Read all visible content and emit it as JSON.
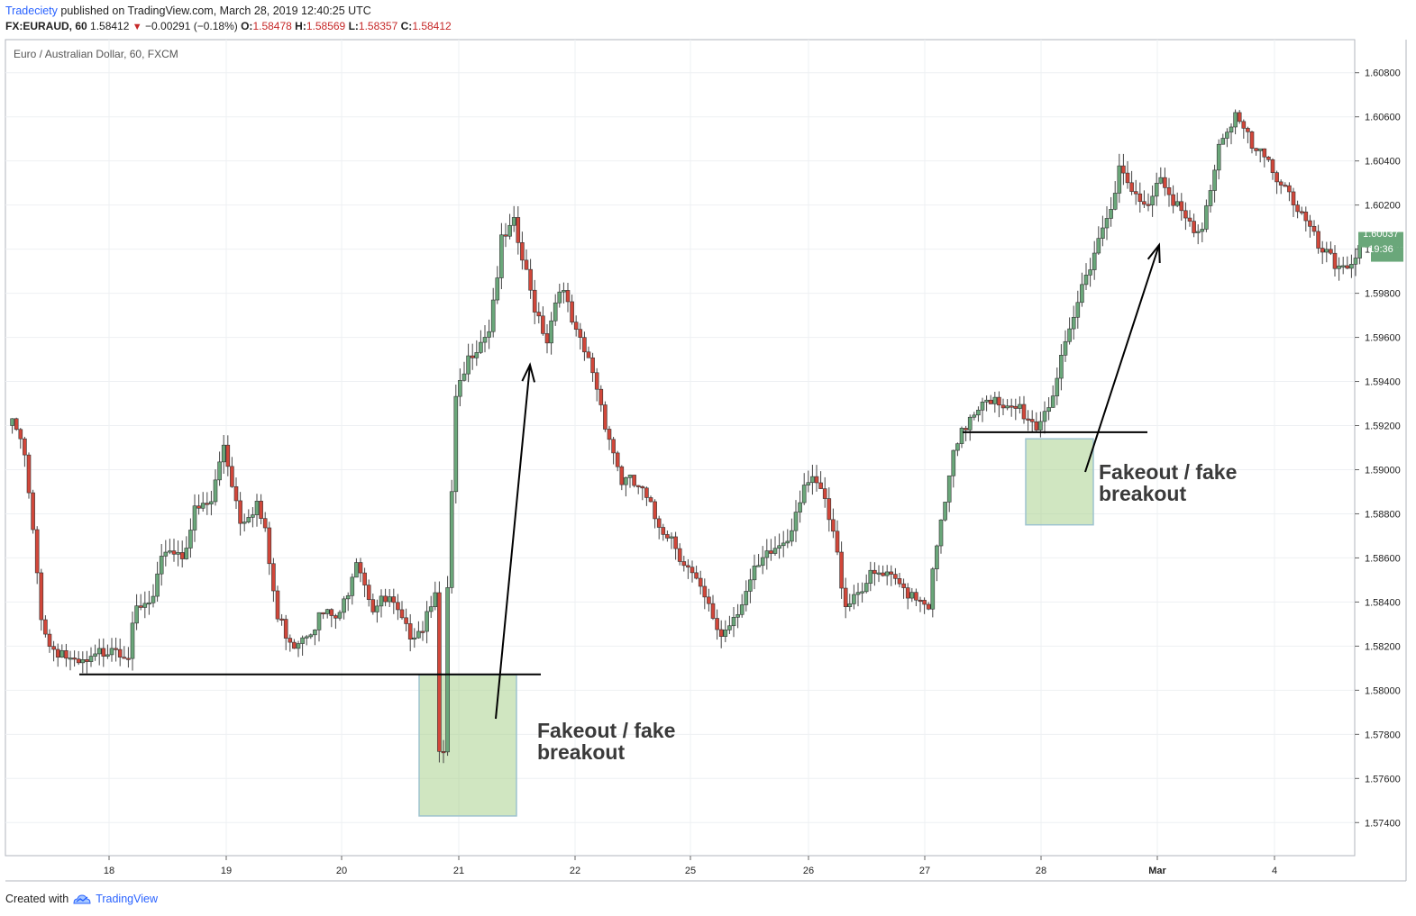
{
  "header": {
    "publisher": "Tradeciety",
    "published_text": "published on TradingView.com, March 28, 2019 12:40:25 UTC",
    "symbol": "FX:EURAUD, 60",
    "last": "1.58412",
    "change": "−0.00291 (−0.18%)",
    "o_label": "O:",
    "o": "1.58478",
    "h_label": "H:",
    "h": "1.58569",
    "l_label": "L:",
    "l": "1.58357",
    "c_label": "C:",
    "c": "1.58412"
  },
  "footer": {
    "created_with": "Created with",
    "brand": "TradingView",
    "logo_icon": "tradingview-cloud-icon"
  },
  "price_tag": {
    "value": "1.60037",
    "countdown": "19:36",
    "color": "#6aa77a"
  },
  "colors": {
    "up": "#6aa77a",
    "down": "#d1473a",
    "grid": "#eef0f3",
    "zone": "#a9d18e"
  },
  "chart_data": {
    "type": "candlestick",
    "title": "Euro / Australian Dollar, 60, FXCM",
    "ylim": [
      1.5725,
      1.6095
    ],
    "y_ticks": [
      "1.60800",
      "1.60600",
      "1.60400",
      "1.60200",
      "1.60000",
      "1.59800",
      "1.59600",
      "1.59400",
      "1.59200",
      "1.59000",
      "1.58800",
      "1.58600",
      "1.58400",
      "1.58200",
      "1.58000",
      "1.57800",
      "1.57600",
      "1.57400"
    ],
    "x_ticks": [
      "18",
      "19",
      "20",
      "21",
      "22",
      "25",
      "26",
      "27",
      "28",
      "Mar",
      "4"
    ],
    "close_path": [
      [
        0,
        1.592
      ],
      [
        2,
        1.5918
      ],
      [
        4,
        1.5905
      ],
      [
        6,
        1.587
      ],
      [
        8,
        1.5835
      ],
      [
        10,
        1.582
      ],
      [
        13,
        1.5818
      ],
      [
        16,
        1.581
      ],
      [
        20,
        1.5812
      ],
      [
        25,
        1.5822
      ],
      [
        29,
        1.5817
      ],
      [
        31,
        1.5835
      ],
      [
        35,
        1.584
      ],
      [
        38,
        1.5865
      ],
      [
        42,
        1.5862
      ],
      [
        45,
        1.588
      ],
      [
        49,
        1.5885
      ],
      [
        52,
        1.5912
      ],
      [
        56,
        1.5878
      ],
      [
        60,
        1.5885
      ],
      [
        62,
        1.587
      ],
      [
        65,
        1.5832
      ],
      [
        69,
        1.5822
      ],
      [
        72,
        1.5828
      ],
      [
        76,
        1.5834
      ],
      [
        80,
        1.5832
      ],
      [
        84,
        1.5862
      ],
      [
        88,
        1.5838
      ],
      [
        92,
        1.584
      ],
      [
        96,
        1.5826
      ],
      [
        100,
        1.583
      ],
      [
        103,
        1.5848
      ],
      [
        104,
        1.577
      ],
      [
        105,
        1.5768
      ],
      [
        106,
        1.5845
      ],
      [
        108,
        1.593
      ],
      [
        112,
        1.5955
      ],
      [
        116,
        1.5965
      ],
      [
        119,
        1.6002
      ],
      [
        122,
        1.601
      ],
      [
        126,
        1.598
      ],
      [
        130,
        1.596
      ],
      [
        133,
        1.5985
      ],
      [
        137,
        1.596
      ],
      [
        141,
        1.5945
      ],
      [
        145,
        1.5915
      ],
      [
        148,
        1.5895
      ],
      [
        152,
        1.5892
      ],
      [
        156,
        1.5878
      ],
      [
        160,
        1.587
      ],
      [
        164,
        1.5855
      ],
      [
        168,
        1.584
      ],
      [
        172,
        1.5825
      ],
      [
        176,
        1.5838
      ],
      [
        180,
        1.5852
      ],
      [
        184,
        1.5862
      ],
      [
        188,
        1.587
      ],
      [
        192,
        1.5895
      ],
      [
        196,
        1.589
      ],
      [
        199,
        1.587
      ],
      [
        202,
        1.584
      ],
      [
        206,
        1.5848
      ],
      [
        210,
        1.5852
      ],
      [
        214,
        1.5848
      ],
      [
        218,
        1.5845
      ],
      [
        222,
        1.584
      ],
      [
        225,
        1.5875
      ],
      [
        228,
        1.5905
      ],
      [
        232,
        1.5925
      ],
      [
        236,
        1.5935
      ],
      [
        240,
        1.5925
      ],
      [
        244,
        1.5928
      ],
      [
        248,
        1.592
      ],
      [
        252,
        1.5935
      ],
      [
        256,
        1.596
      ],
      [
        260,
        1.599
      ],
      [
        264,
        1.601
      ],
      [
        268,
        1.6035
      ],
      [
        271,
        1.6025
      ],
      [
        274,
        1.6018
      ],
      [
        278,
        1.6035
      ],
      [
        282,
        1.602
      ],
      [
        286,
        1.6005
      ],
      [
        288,
        1.6008
      ],
      [
        292,
        1.6048
      ],
      [
        296,
        1.6062
      ],
      [
        300,
        1.6045
      ],
      [
        304,
        1.6038
      ],
      [
        308,
        1.603
      ],
      [
        312,
        1.6015
      ],
      [
        316,
        1.6
      ],
      [
        320,
        1.5992
      ],
      [
        324,
        1.5995
      ],
      [
        326,
        1.6003
      ]
    ],
    "support_lines": [
      {
        "price": 1.58072,
        "from_day": "17",
        "to_day": "21"
      },
      {
        "price": 1.5917,
        "from_day": "27",
        "to_day": "28"
      }
    ],
    "zones": [
      {
        "label": "Fakeout / fake breakout",
        "from_price": 1.5743,
        "to_price": 1.5807,
        "day": "21"
      },
      {
        "label": "Fakeout / fake breakout",
        "from_price": 1.5875,
        "to_price": 1.5914,
        "day": "28"
      }
    ],
    "annotations": [
      {
        "text": "Fakeout / fake breakout",
        "day": "21"
      },
      {
        "text": "Fakeout / fake breakout",
        "day": "28"
      }
    ]
  }
}
